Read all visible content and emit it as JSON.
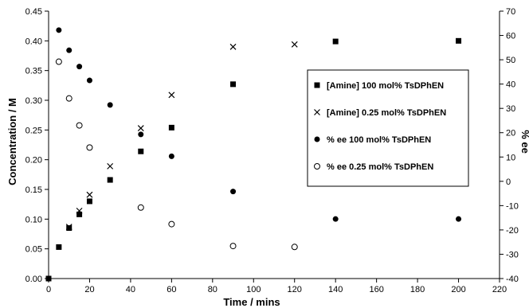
{
  "chart_data": {
    "type": "scatter",
    "xlabel": "Time / mins",
    "ylabel_left": "Concentration / M",
    "ylabel_right": "% ee",
    "xlim": [
      0,
      220
    ],
    "ylim_left": [
      0,
      0.45
    ],
    "ylim_right": [
      -40,
      70
    ],
    "x_ticks": [
      "0",
      "20",
      "40",
      "60",
      "80",
      "100",
      "120",
      "140",
      "160",
      "180",
      "200",
      "220"
    ],
    "y_left_ticks": [
      "0.00",
      "0.05",
      "0.10",
      "0.15",
      "0.20",
      "0.25",
      "0.30",
      "0.35",
      "0.40",
      "0.45"
    ],
    "y_right_ticks": [
      "-40",
      "-30",
      "-20",
      "-10",
      "0",
      "10",
      "20",
      "30",
      "40",
      "50",
      "60",
      "70"
    ],
    "grid": false,
    "legend_position": "right",
    "series": [
      {
        "name": "[Amine] 100 mol% TsDPhEN",
        "marker": "square",
        "axis": "left",
        "x": [
          0,
          5,
          10,
          15,
          20,
          30,
          45,
          60,
          90,
          140,
          200
        ],
        "y": [
          0.0,
          0.053,
          0.085,
          0.108,
          0.13,
          0.166,
          0.214,
          0.254,
          0.327,
          0.399,
          0.4
        ]
      },
      {
        "name": "[Amine] 0.25 mol% TsDPhEN",
        "marker": "cross",
        "axis": "left",
        "x": [
          10,
          15,
          20,
          30,
          45,
          60,
          90,
          120
        ],
        "y": [
          0.087,
          0.114,
          0.141,
          0.189,
          0.253,
          0.309,
          0.39,
          0.394
        ]
      },
      {
        "name": "% ee 100 mol% TsDPhEN",
        "marker": "filled-circle",
        "axis": "right",
        "x": [
          5,
          10,
          15,
          20,
          30,
          45,
          60,
          90,
          140,
          200
        ],
        "y": [
          62.2,
          53.9,
          47.2,
          41.5,
          31.4,
          19.3,
          10.3,
          -4.2,
          -15.5,
          -15.5
        ]
      },
      {
        "name": "% ee 0.25 mol% TsDPhEN",
        "marker": "open-circle",
        "axis": "right",
        "x": [
          5,
          10,
          15,
          20,
          45,
          60,
          90,
          120
        ],
        "y": [
          49.2,
          34.1,
          23.0,
          13.9,
          -10.8,
          -17.6,
          -26.6,
          -27.0
        ]
      }
    ]
  }
}
